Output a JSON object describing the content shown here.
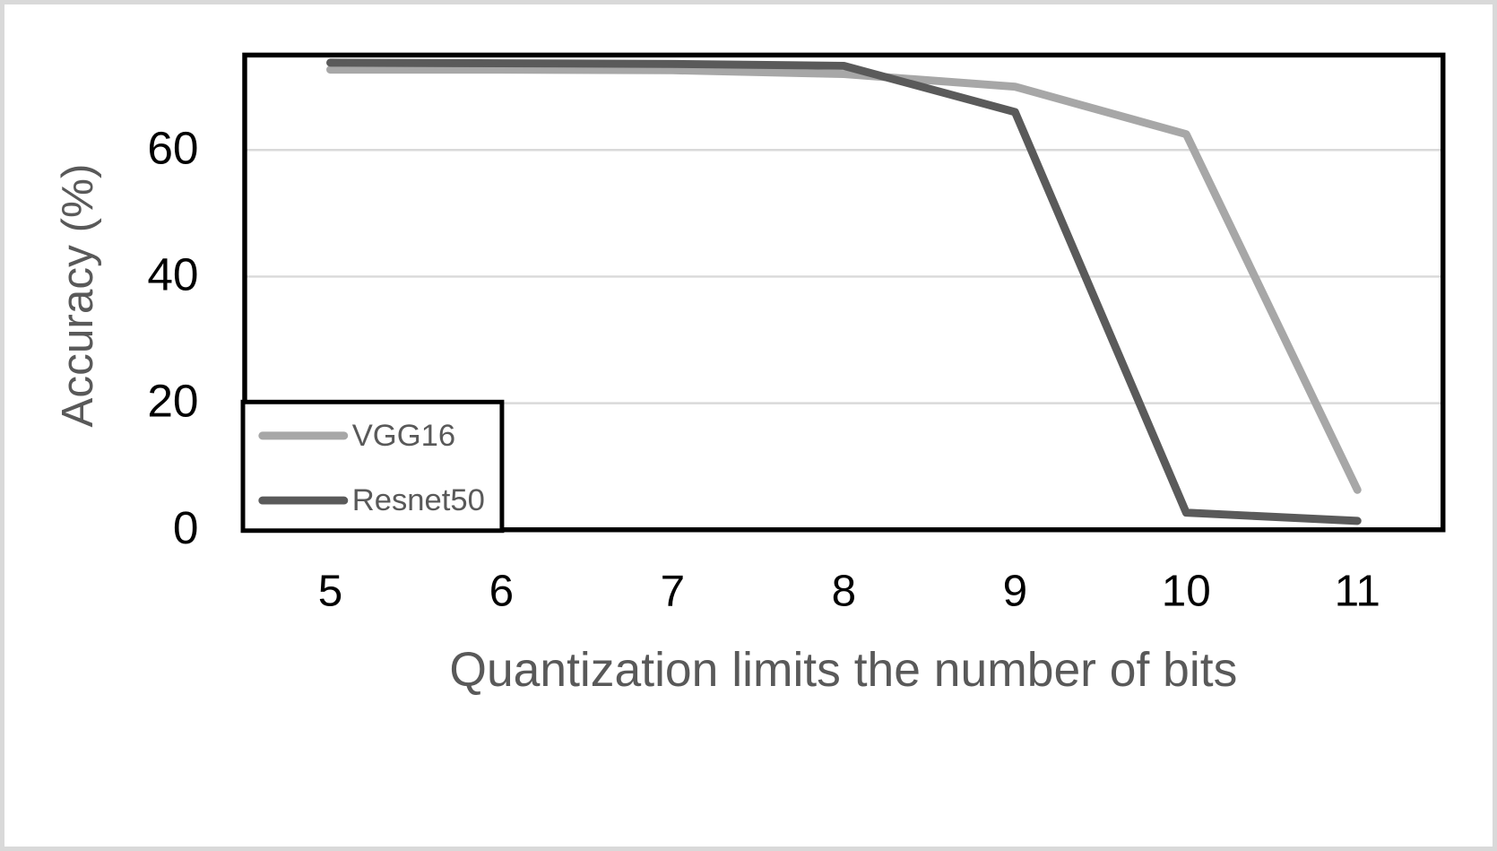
{
  "figure": {
    "background_color": "#ffffff",
    "frame_color": "#d9d9d9"
  },
  "chart_data": {
    "type": "line",
    "title": "",
    "xlabel": "Quantization limits the number of bits",
    "ylabel": "Accuracy (%)",
    "categories": [
      5,
      6,
      7,
      8,
      9,
      10,
      11
    ],
    "series": [
      {
        "name": "VGG16",
        "color": "#a7a7a7",
        "values": [
          72.7,
          72.7,
          72.6,
          72.0,
          70.0,
          62.5,
          6.3
        ]
      },
      {
        "name": "Resnet50",
        "color": "#5a5a5a",
        "values": [
          73.8,
          73.7,
          73.6,
          73.3,
          66.0,
          2.7,
          1.4
        ]
      }
    ],
    "ylim": [
      0,
      75
    ],
    "yticks": [
      0,
      20,
      40,
      60
    ],
    "grid": true,
    "gridline_color": "#d9d9d9",
    "axis_color": "#000000",
    "tick_label_color": "#000000",
    "axis_title_color": "#595959",
    "legend": {
      "position": "bottom-left",
      "border_color": "#000000",
      "fill_color": "#ffffff",
      "labels": [
        "VGG16",
        "Resnet50"
      ]
    }
  }
}
